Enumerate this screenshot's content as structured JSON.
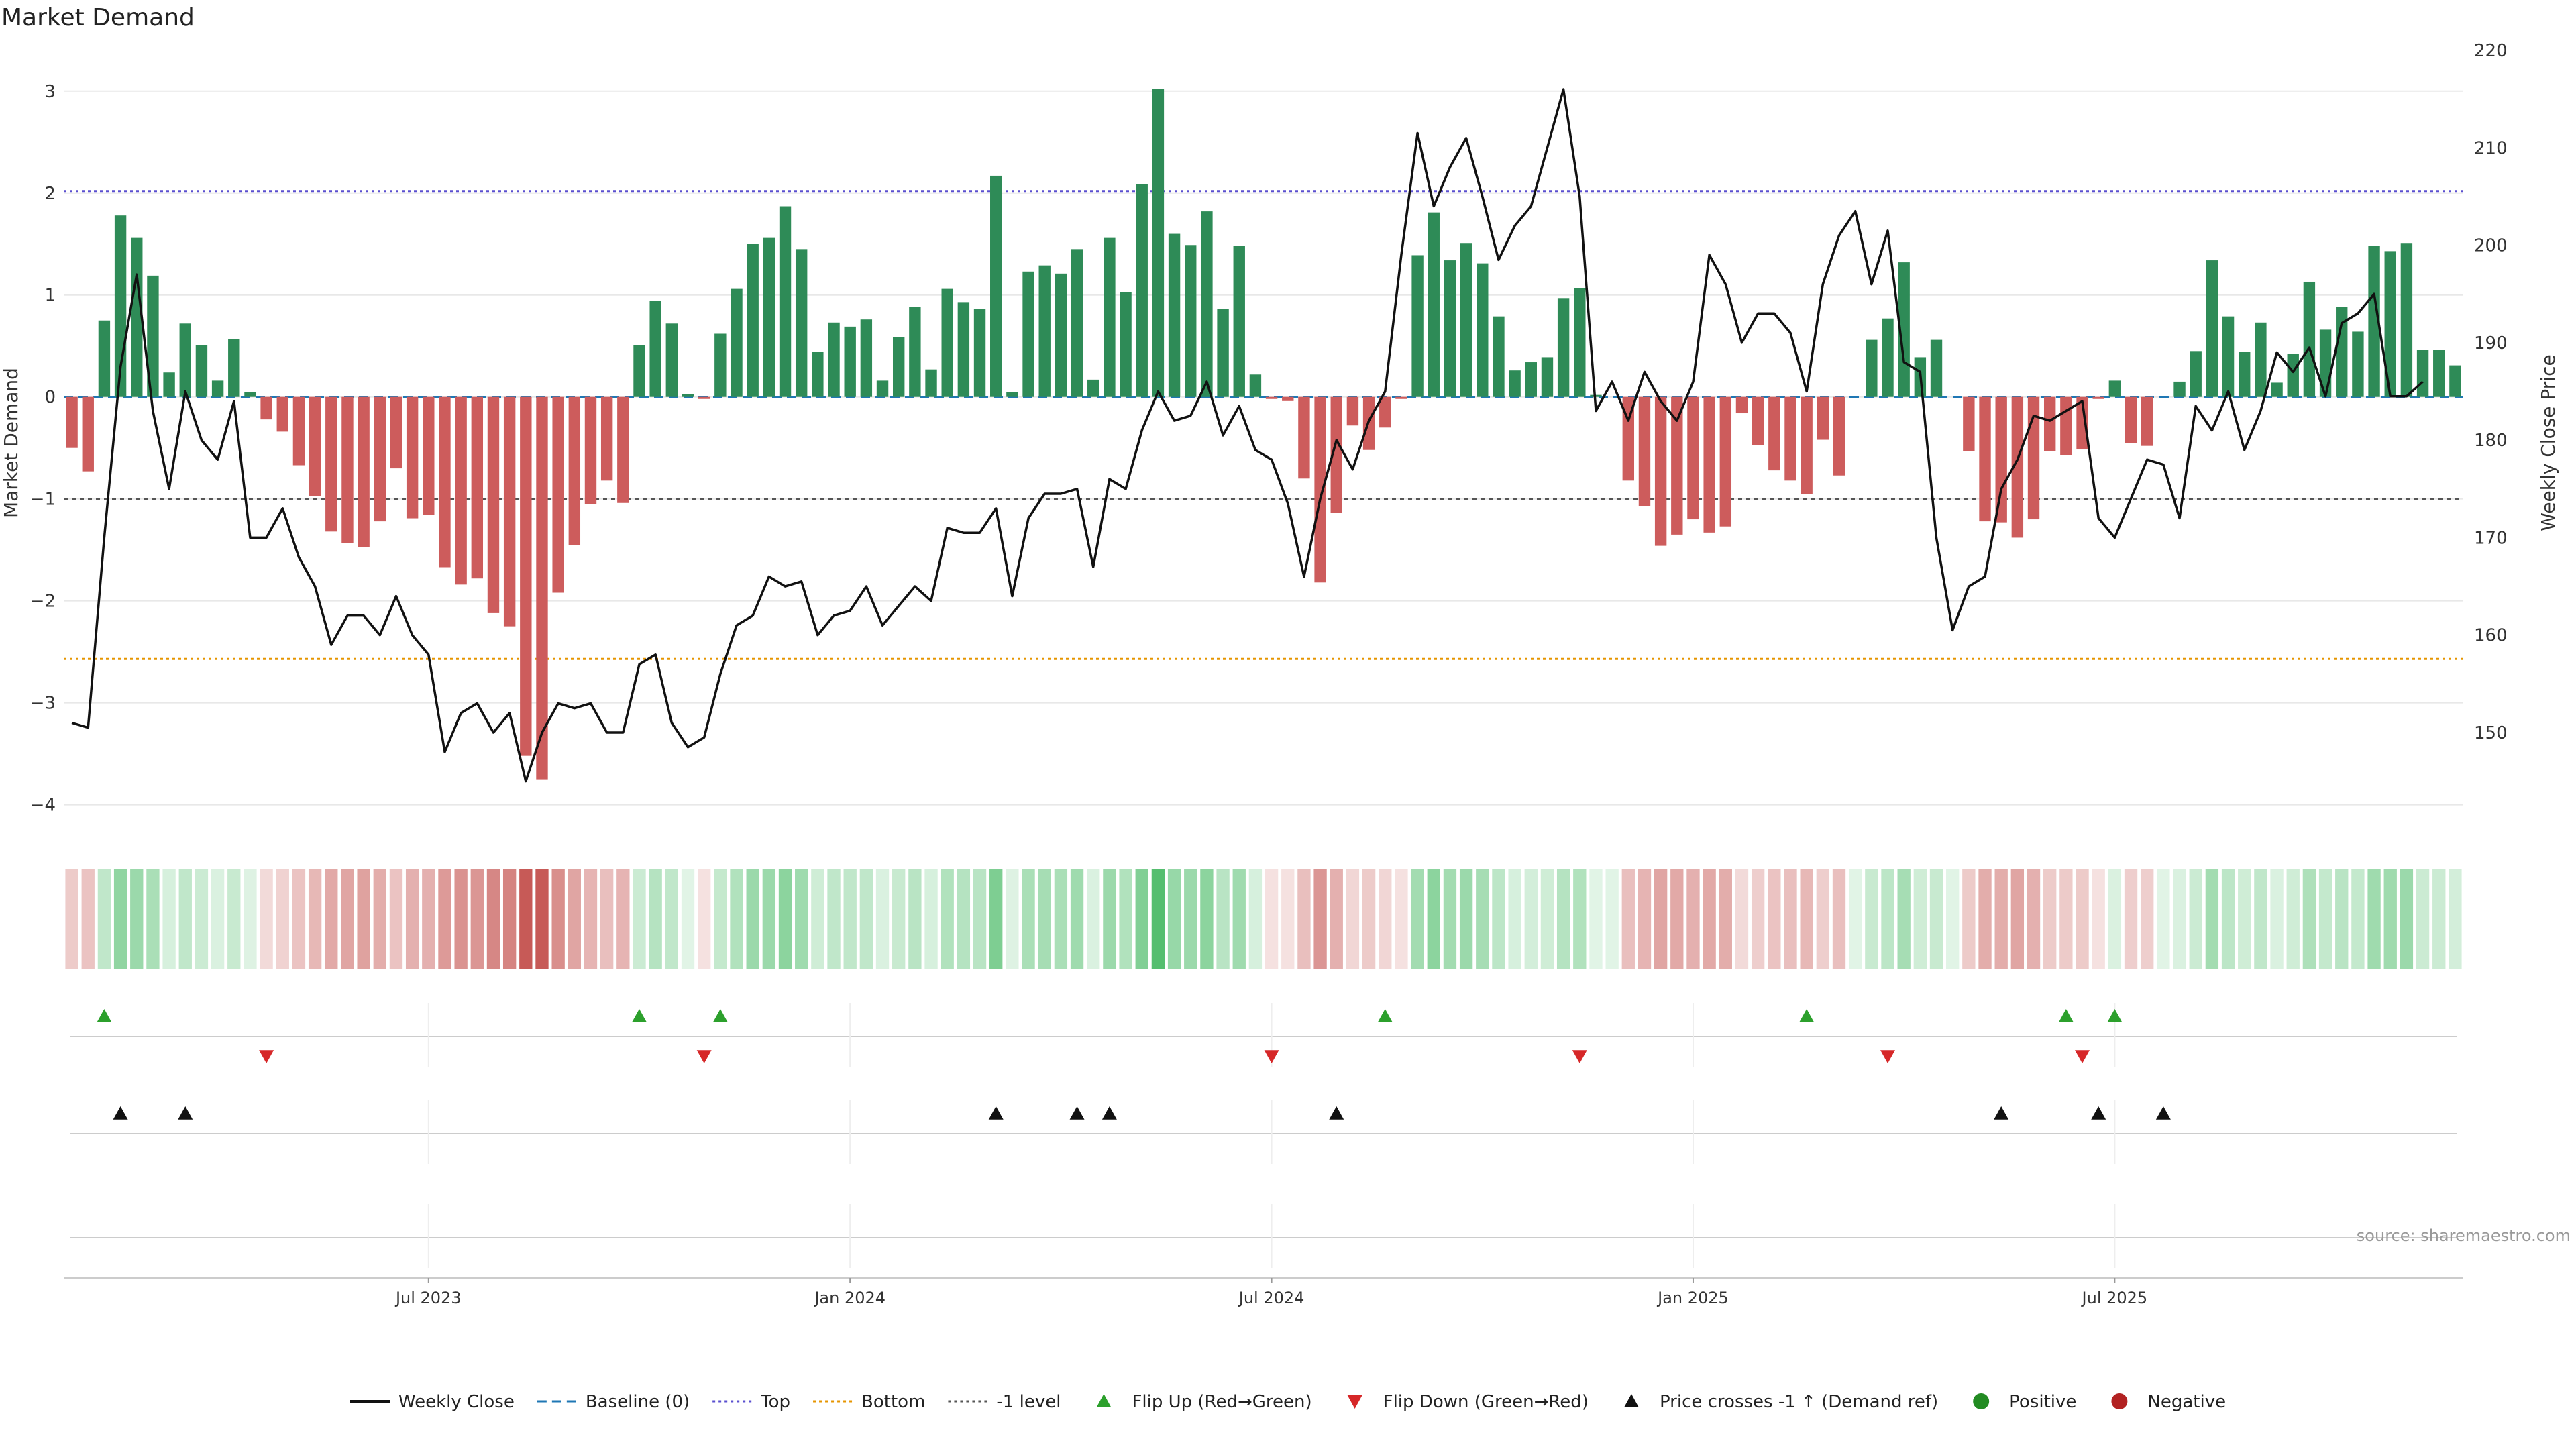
{
  "chart_data": {
    "type": "bar",
    "title": "Market Demand",
    "ylabel": "Market Demand",
    "ylabel_right": "Weekly Close Price",
    "ylim": [
      -4.2,
      3.4
    ],
    "ylim_right": [
      140.5,
      220
    ],
    "y_ticks": [
      -4,
      -3,
      -2,
      -1,
      0,
      1,
      2,
      3
    ],
    "y_tick_labels": [
      "−4",
      "−3",
      "−2",
      "−1",
      "0",
      "1",
      "2",
      "3"
    ],
    "y_right_ticks": [
      150,
      160,
      170,
      180,
      190,
      200,
      210,
      220
    ],
    "y_right_tick_labels": [
      "150",
      "160",
      "170",
      "180",
      "190",
      "200",
      "210",
      "220"
    ],
    "x_tick_weeks": [
      22,
      48,
      74,
      100,
      126
    ],
    "x_tick_labels": [
      "Jul 2023",
      "Jan 2024",
      "Jul 2024",
      "Jan 2025",
      "Jul 2025"
    ],
    "levels": {
      "top": 2.02,
      "bottom": -2.57,
      "minus_one": -1.0,
      "baseline": 0
    },
    "demand": [
      -0.5,
      -0.73,
      0.75,
      1.78,
      1.56,
      1.19,
      0.24,
      0.72,
      0.51,
      0.16,
      0.57,
      0.05,
      -0.22,
      -0.34,
      -0.67,
      -0.97,
      -1.32,
      -1.43,
      -1.47,
      -1.22,
      -0.7,
      -1.19,
      -1.16,
      -1.67,
      -1.84,
      -1.78,
      -2.12,
      -2.25,
      -3.52,
      -3.75,
      -1.92,
      -1.45,
      -1.05,
      -0.82,
      -1.04,
      0.51,
      0.94,
      0.72,
      0.03,
      -0.02,
      0.62,
      1.06,
      1.5,
      1.56,
      1.87,
      1.45,
      0.44,
      0.73,
      0.69,
      0.76,
      0.16,
      0.59,
      0.88,
      0.27,
      1.06,
      0.93,
      0.86,
      2.17,
      0.05,
      1.23,
      1.29,
      1.21,
      1.45,
      0.17,
      1.56,
      1.03,
      2.09,
      3.02,
      1.6,
      1.49,
      1.82,
      0.86,
      1.48,
      0.22,
      -0.02,
      -0.04,
      -0.8,
      -1.82,
      -1.14,
      -0.28,
      -0.52,
      -0.3,
      -0.02,
      1.39,
      1.81,
      1.34,
      1.51,
      1.31,
      0.79,
      0.26,
      0.34,
      0.39,
      0.97,
      1.07,
      0.02,
      0,
      -0.82,
      -1.07,
      -1.46,
      -1.35,
      -1.2,
      -1.33,
      -1.27,
      -0.16,
      -0.47,
      -0.72,
      -0.82,
      -0.95,
      -0.42,
      -0.77,
      0,
      0.56,
      0.77,
      1.32,
      0.39,
      0.56,
      0,
      -0.53,
      -1.22,
      -1.23,
      -1.38,
      -1.2,
      -0.53,
      -0.57,
      -0.51,
      -0.02,
      0.16,
      -0.45,
      -0.48,
      0,
      0.15,
      0.45,
      1.34,
      0.79,
      0.44,
      0.73,
      0.14,
      0.42,
      1.13,
      0.66,
      0.88,
      0.64,
      1.48,
      1.43,
      1.51,
      0.46,
      0.46,
      0.31
    ],
    "close": [
      151,
      150.5,
      170,
      187.5,
      197,
      183,
      175,
      185,
      180,
      178,
      184,
      170,
      170,
      173,
      168,
      165,
      159,
      162,
      162,
      160,
      164,
      160,
      158,
      148,
      152,
      153,
      150,
      152,
      145,
      150,
      153,
      152.5,
      153,
      150,
      150,
      157,
      158,
      151,
      148.5,
      149.5,
      156,
      161,
      162,
      166,
      165,
      165.5,
      160,
      162,
      162.5,
      165,
      161,
      163,
      165,
      163.5,
      171,
      170.5,
      170.5,
      173,
      164,
      172,
      174.5,
      174.5,
      175,
      167,
      176,
      175,
      181,
      185,
      182,
      182.5,
      186,
      180.5,
      183.5,
      179,
      178,
      173.5,
      166,
      174,
      180,
      177,
      182,
      185,
      199,
      211.5,
      204,
      208,
      211,
      205,
      198.5,
      202,
      204,
      210,
      216,
      205,
      183,
      186,
      182,
      187,
      184,
      182,
      186,
      199,
      196,
      190,
      193,
      193,
      191,
      185,
      196,
      201,
      203.5,
      196,
      201.5,
      188,
      187,
      170,
      160.5,
      165,
      166,
      175,
      178,
      182.5,
      182,
      183,
      184,
      172,
      170,
      174,
      178,
      177.5,
      172,
      183.5,
      181,
      185,
      179,
      183,
      189,
      187,
      189.5,
      184.5,
      192,
      193,
      195,
      184.5,
      184.5,
      186
    ],
    "flip_up_weeks": [
      2,
      35,
      40,
      81,
      107,
      123,
      126
    ],
    "flip_down_weeks": [
      12,
      39,
      74,
      93,
      112,
      124
    ],
    "price_cross_weeks": [
      3,
      7,
      57,
      62,
      64,
      78,
      119,
      125,
      129
    ],
    "legend": [
      {
        "label": "Weekly Close",
        "kind": "line",
        "color": "#111111"
      },
      {
        "label": "Baseline (0)",
        "kind": "dash",
        "color": "#1f77b4"
      },
      {
        "label": "Top",
        "kind": "dot",
        "color": "#5a4fcf"
      },
      {
        "label": "Bottom",
        "kind": "dot",
        "color": "#e69500"
      },
      {
        "label": "-1 level",
        "kind": "dot",
        "color": "#555555"
      },
      {
        "label": "Flip Up (Red→Green)",
        "kind": "tri-up",
        "color": "#2ca02c"
      },
      {
        "label": "Flip Down (Green→Red)",
        "kind": "tri-down",
        "color": "#d62728"
      },
      {
        "label": "Price crosses -1 ↑ (Demand ref)",
        "kind": "tri-up",
        "color": "#111111"
      },
      {
        "label": "Positive",
        "kind": "circle",
        "color": "#228b22"
      },
      {
        "label": "Negative",
        "kind": "circle",
        "color": "#b22222"
      }
    ],
    "source": "source: sharemaestro.com",
    "colors": {
      "positive": "#2e8b57",
      "negative": "#cd5c5c",
      "line": "#111111",
      "top": "#5a4fcf",
      "bottom": "#e69500",
      "minus_one": "#555555",
      "baseline": "#1f77b4",
      "flip_up": "#2ca02c",
      "flip_down": "#d62728",
      "grid": "#e8e8e8"
    }
  }
}
